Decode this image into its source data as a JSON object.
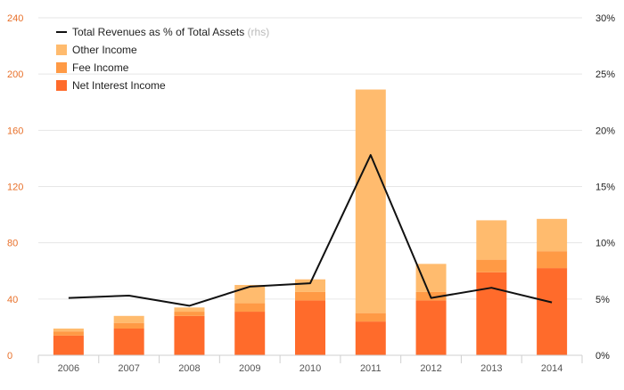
{
  "chart_data": {
    "type": "bar",
    "stacked": true,
    "categories": [
      "2006",
      "2007",
      "2008",
      "2009",
      "2010",
      "2011",
      "2012",
      "2013",
      "2014"
    ],
    "series": [
      {
        "name": "Net Interest Income",
        "kind": "bar",
        "axis": "left",
        "color": "#ff6b2b",
        "values": [
          14,
          19,
          28,
          31,
          39,
          24,
          39,
          59,
          62
        ]
      },
      {
        "name": "Fee Income",
        "kind": "bar",
        "axis": "left",
        "color": "#ff9a45",
        "values": [
          3,
          4,
          3,
          6,
          6,
          6,
          6,
          9,
          12
        ]
      },
      {
        "name": "Other Income",
        "kind": "bar",
        "axis": "left",
        "color": "#ffbb6e",
        "values": [
          2,
          5,
          3,
          13,
          9,
          159,
          20,
          28,
          23
        ]
      },
      {
        "name": "Total Revenues as % of Total Assets",
        "name_suffix": "(rhs)",
        "kind": "line",
        "axis": "right",
        "color": "#111111",
        "values": [
          5.1,
          5.3,
          4.4,
          6.1,
          6.4,
          17.8,
          5.1,
          6.0,
          4.7
        ]
      }
    ],
    "left_axis": {
      "ylim": [
        0,
        240
      ],
      "ticks": [
        "0",
        "40",
        "80",
        "120",
        "160",
        "200",
        "240"
      ],
      "tick_values": [
        0,
        40,
        80,
        120,
        160,
        200,
        240
      ],
      "color": "#e8702a"
    },
    "right_axis": {
      "ylim": [
        0,
        30
      ],
      "ticks": [
        "0%",
        "5%",
        "10%",
        "15%",
        "20%",
        "25%",
        "30%"
      ],
      "tick_values": [
        0,
        5,
        10,
        15,
        20,
        25,
        30
      ],
      "color": "#222222"
    },
    "grid": true,
    "legend_position": "top-left",
    "legend_order": [
      "Total Revenues as % of Total Assets",
      "Other Income",
      "Fee Income",
      "Net Interest Income"
    ]
  }
}
